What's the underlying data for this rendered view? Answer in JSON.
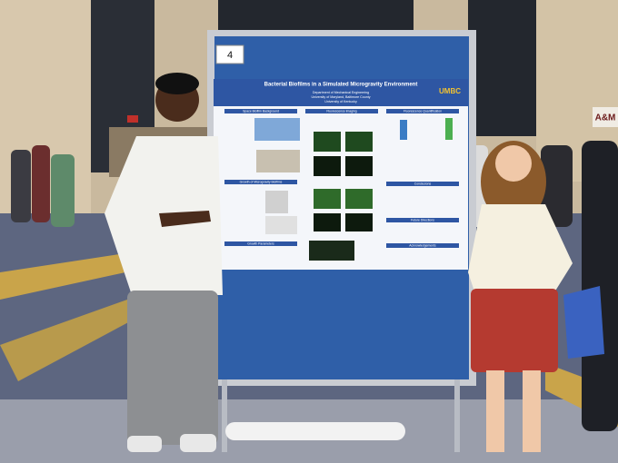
{
  "sign": {
    "number": "4"
  },
  "poster": {
    "title": "Bacterial Biofilms in a Simulated Microgravity Environment",
    "logo": "UMBC",
    "affiliations": [
      "Department of Mechanical Engineering",
      "University of Maryland, Baltimore County",
      "University of Kentucky"
    ],
    "sections": [
      "Space Biofilm Background",
      "Fluorescence Imaging",
      "Fluorescence Quantification",
      "Growth of Microgravity Biofilms",
      "Conclusions",
      "Growth Parameters",
      "Future Directions",
      "Acknowledgements"
    ]
  },
  "background_sign": "A&M"
}
